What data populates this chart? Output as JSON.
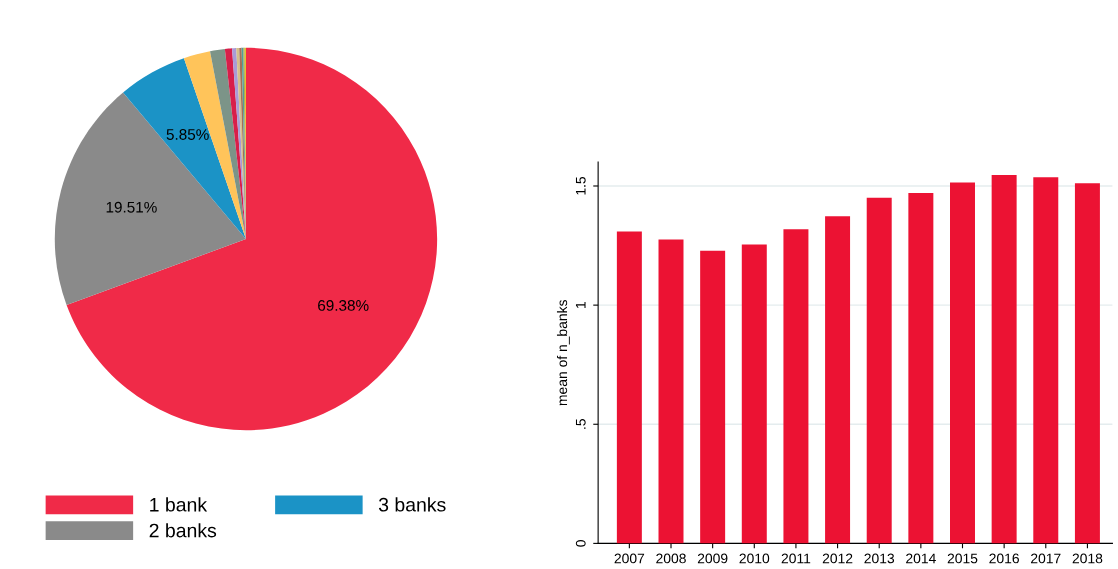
{
  "chart_data": [
    {
      "type": "pie",
      "categories": [
        "1 bank",
        "2 banks",
        "3 banks",
        null,
        null,
        null,
        null,
        null,
        null,
        null,
        null,
        null
      ],
      "values": [
        69.38,
        19.51,
        5.85,
        2.25,
        1.25,
        0.6,
        0.35,
        0.25,
        0.2,
        0.15,
        0.1,
        0.11
      ],
      "colors": [
        "#f02a48",
        "#8a8a8a",
        "#1b93c6",
        "#ffc45a",
        "#7c9488",
        "#d81e4a",
        "#a99bd6",
        "#d5c08a",
        "#a2705a",
        "#4f9f9a",
        "#a6a04a",
        "#e0c020"
      ],
      "value_labels": [
        "69.38%",
        "19.51%",
        "5.85%",
        null,
        null,
        null,
        null,
        null,
        null,
        null,
        null,
        null
      ],
      "legend": "bottom"
    },
    {
      "type": "bar",
      "categories": [
        "2007",
        "2008",
        "2009",
        "2010",
        "2011",
        "2012",
        "2013",
        "2014",
        "2015",
        "2016",
        "2017",
        "2018"
      ],
      "values": [
        1.309,
        1.275,
        1.228,
        1.254,
        1.318,
        1.373,
        1.451,
        1.471,
        1.515,
        1.546,
        1.537,
        1.512
      ],
      "color": "#ec1233",
      "ylabel": "mean of n_banks",
      "ylim": [
        0,
        1.6
      ],
      "yticks": [
        0,
        {
          "value": 0.5,
          "label": ".5"
        },
        1,
        1.5
      ],
      "grid": "y"
    }
  ]
}
